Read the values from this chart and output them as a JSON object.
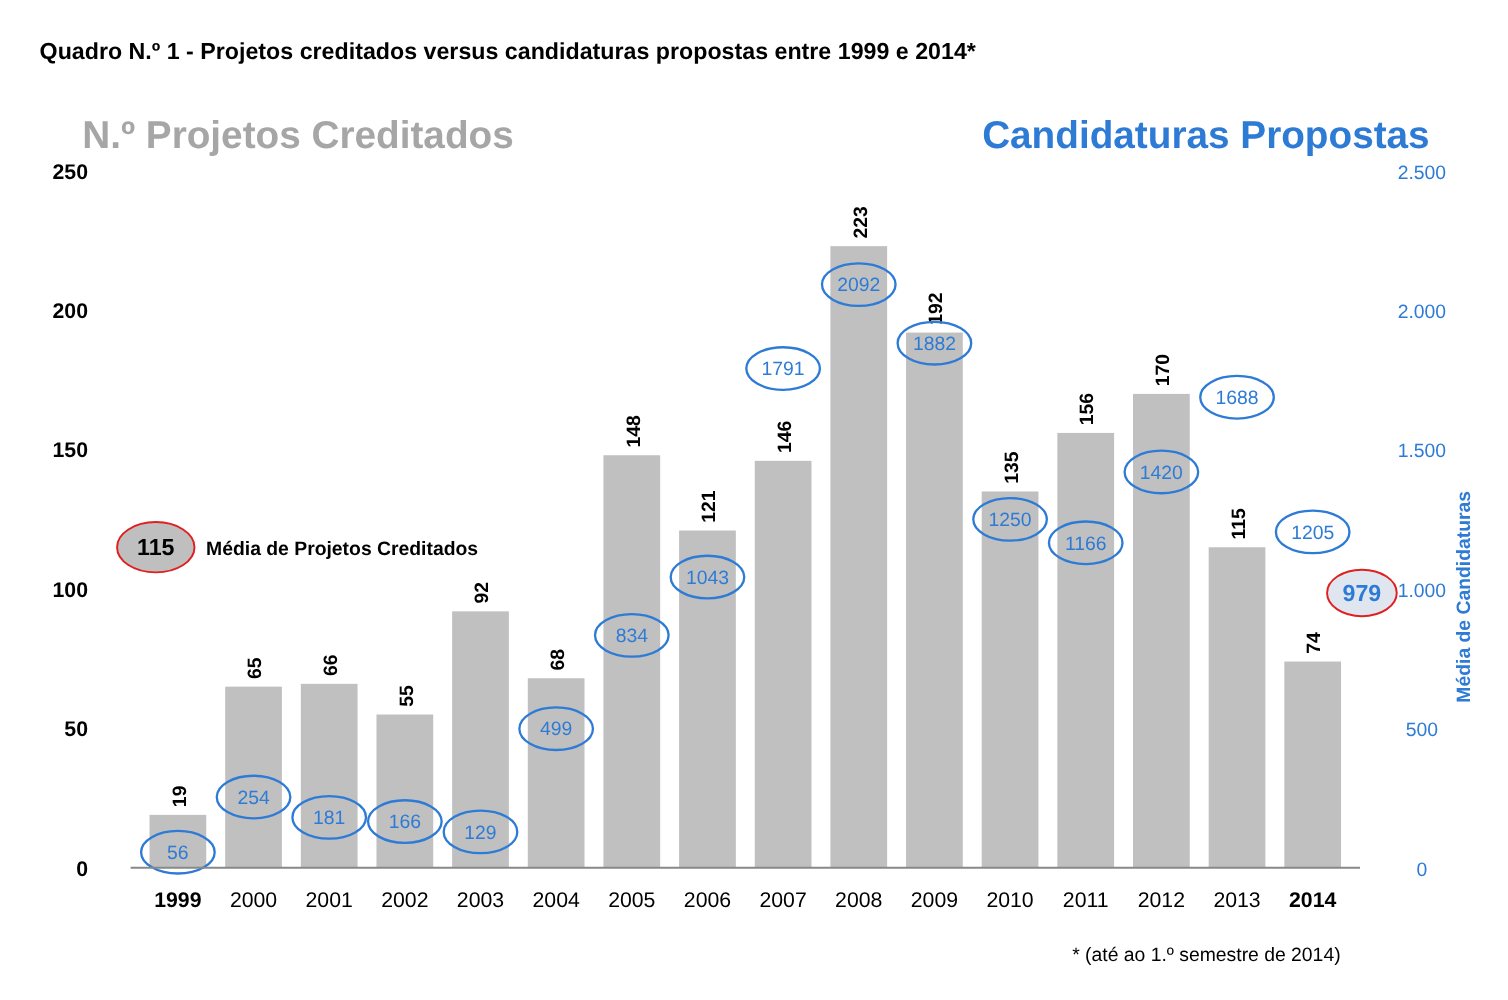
{
  "chart_data": {
    "type": "bar",
    "title": "Quadro N.º 1 - Projetos creditados versus candidaturas propostas entre 1999 e 2014*",
    "categories": [
      "1999",
      "2000",
      "2001",
      "2002",
      "2003",
      "2004",
      "2005",
      "2006",
      "2007",
      "2008",
      "2009",
      "2010",
      "2011",
      "2012",
      "2013",
      "2014"
    ],
    "series": [
      {
        "name": "N.º Projetos Creditados",
        "color": "#c0c0c0",
        "values": [
          19,
          65,
          66,
          55,
          92,
          68,
          148,
          121,
          146,
          223,
          192,
          135,
          156,
          170,
          115,
          74
        ]
      },
      {
        "name": "Candidaturas Propostas",
        "type": "scatter",
        "axis": "y2",
        "color": "#2e7bd6",
        "values": [
          56,
          254,
          181,
          166,
          129,
          499,
          834,
          1043,
          1791,
          2092,
          1882,
          1250,
          1166,
          1420,
          1688,
          1205
        ]
      }
    ],
    "ylim": [
      0,
      250
    ],
    "yticks": [
      0,
      50,
      100,
      150,
      200,
      250
    ],
    "y2lim": [
      0,
      2500
    ],
    "y2ticks": [
      {
        "value": 0,
        "label": "0"
      },
      {
        "value": 500,
        "label": "500"
      },
      {
        "value": 1000,
        "label": "1.000"
      },
      {
        "value": 1500,
        "label": "1.500"
      },
      {
        "value": 2000,
        "label": "2.000"
      },
      {
        "value": 2500,
        "label": "2.500"
      }
    ],
    "data_labels": true,
    "legend": false,
    "annotations": [
      {
        "text": "115",
        "y": 115
      },
      "Média de Projetos Creditados",
      "979",
      "Média de Candidaturas",
      "* (até ao 1.º semestre de 2014)"
    ]
  }
}
